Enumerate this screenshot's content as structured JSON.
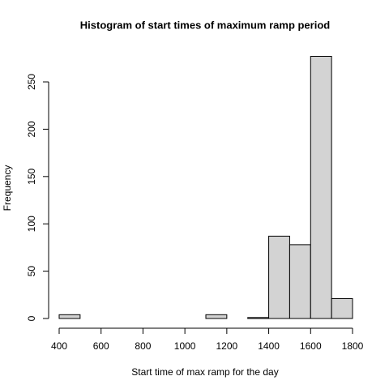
{
  "chart_data": {
    "type": "histogram",
    "title": "Histogram of start times of maximum ramp period",
    "x_label": "Start time of max ramp for the day",
    "y_label": "Frequency",
    "bins": [
      400,
      500,
      600,
      700,
      800,
      900,
      1000,
      1100,
      1200,
      1300,
      1400,
      1500,
      1600,
      1700,
      1800
    ],
    "values": [
      4,
      0,
      0,
      0,
      0,
      0,
      0,
      4,
      0,
      1,
      87,
      78,
      277,
      21
    ],
    "color": "#d3d3d3",
    "xlim": [
      400,
      1800
    ],
    "xticks": [
      400,
      600,
      800,
      1000,
      1200,
      1400,
      1600,
      1800
    ],
    "ylim": [
      0,
      277
    ],
    "yticks": [
      0,
      50,
      100,
      150,
      200,
      250
    ]
  }
}
